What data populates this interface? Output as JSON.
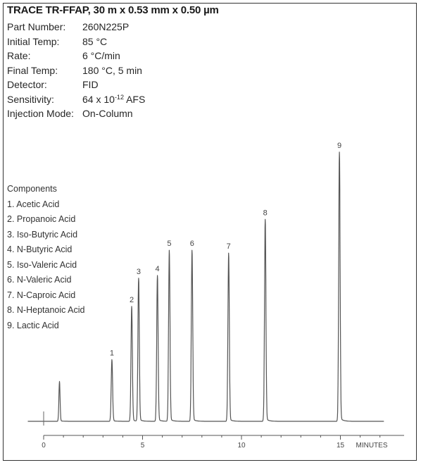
{
  "title": "TRACE TR-FFAP, 30 m x 0.53 mm x 0.50 µm",
  "parameters": [
    {
      "label": "Part Number:",
      "value": "260N225P"
    },
    {
      "label": "Initial Temp:",
      "value": "85 °C"
    },
    {
      "label": "Rate:",
      "value": "6 °C/min"
    },
    {
      "label": "Final Temp:",
      "value": "180 °C, 5 min"
    },
    {
      "label": "Detector:",
      "value": "FID"
    },
    {
      "label": "Sensitivity:",
      "value_prefix": "64 x 10",
      "value_exponent": "-12",
      "value_suffix": " AFS"
    },
    {
      "label": "Injection Mode:",
      "value": "On-Column"
    }
  ],
  "components": {
    "heading": "Components",
    "items": [
      "1. Acetic Acid",
      "2. Propanoic Acid",
      "3. Iso-Butyric Acid",
      "4. N-Butyric Acid",
      "5. Iso-Valeric Acid",
      "6. N-Valeric Acid",
      "7. N-Caproic Acid",
      "8. N-Heptanoic Acid",
      "9. Lactic Acid"
    ]
  },
  "chart_data": {
    "type": "line",
    "xlabel": "MINUTES",
    "xlim": [
      0,
      17.0
    ],
    "x_ticks": [
      0,
      5,
      10,
      15
    ],
    "x_tick_labels": [
      "0",
      "5",
      "10",
      "15"
    ],
    "ylim": [
      0,
      100
    ],
    "grid": false,
    "line_color": "#555555",
    "solvent_peak": {
      "time": 0.8,
      "height": 14
    },
    "peaks": [
      {
        "label": "1",
        "time": 3.45,
        "height": 22
      },
      {
        "label": "2",
        "time": 4.45,
        "height": 41
      },
      {
        "label": "3",
        "time": 4.8,
        "height": 51
      },
      {
        "label": "4",
        "time": 5.75,
        "height": 52
      },
      {
        "label": "5",
        "time": 6.35,
        "height": 61
      },
      {
        "label": "6",
        "time": 7.5,
        "height": 61
      },
      {
        "label": "7",
        "time": 9.35,
        "height": 60
      },
      {
        "label": "8",
        "time": 11.2,
        "height": 72
      },
      {
        "label": "9",
        "time": 14.95,
        "height": 96
      }
    ]
  }
}
